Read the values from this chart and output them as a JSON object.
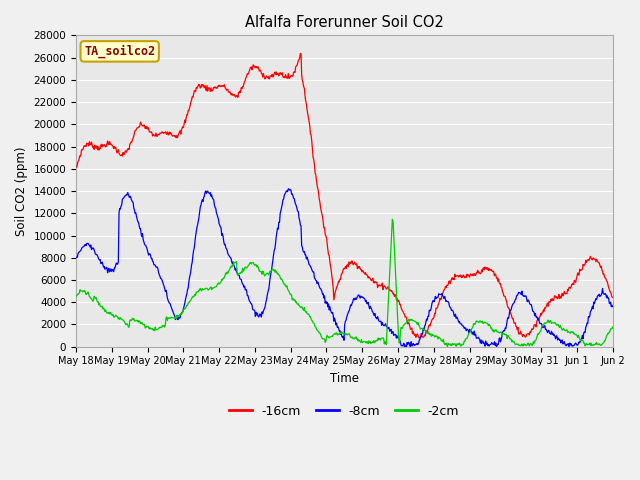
{
  "title": "Alfalfa Forerunner Soil CO2",
  "ylabel": "Soil CO2 (ppm)",
  "xlabel": "Time",
  "annotation": "TA_soilco2",
  "ylim": [
    0,
    28000
  ],
  "yticks": [
    0,
    2000,
    4000,
    6000,
    8000,
    10000,
    12000,
    14000,
    16000,
    18000,
    20000,
    22000,
    24000,
    26000,
    28000
  ],
  "legend_labels": [
    "-16cm",
    "-8cm",
    "-2cm"
  ],
  "legend_colors": [
    "#ff0000",
    "#0000ff",
    "#00cc00"
  ],
  "line_colors": [
    "#ff0000",
    "#0000ff",
    "#00cc00"
  ],
  "bg_color": "#f0f0f0",
  "plot_bg_color": "#e8e8e8",
  "grid_color": "#ffffff",
  "n_points": 800,
  "xtick_labels": [
    "May 18",
    "May 19",
    "May 20",
    "May 21",
    "May 22",
    "May 23",
    "May 24",
    "May 25",
    "May 26",
    "May 27",
    "May 28",
    "May 29",
    "May 30",
    "May 31",
    "Jun 1",
    "Jun 2"
  ],
  "xtick_positions": [
    0,
    1,
    2,
    3,
    4,
    5,
    6,
    7,
    8,
    9,
    10,
    11,
    12,
    13,
    14,
    15
  ]
}
